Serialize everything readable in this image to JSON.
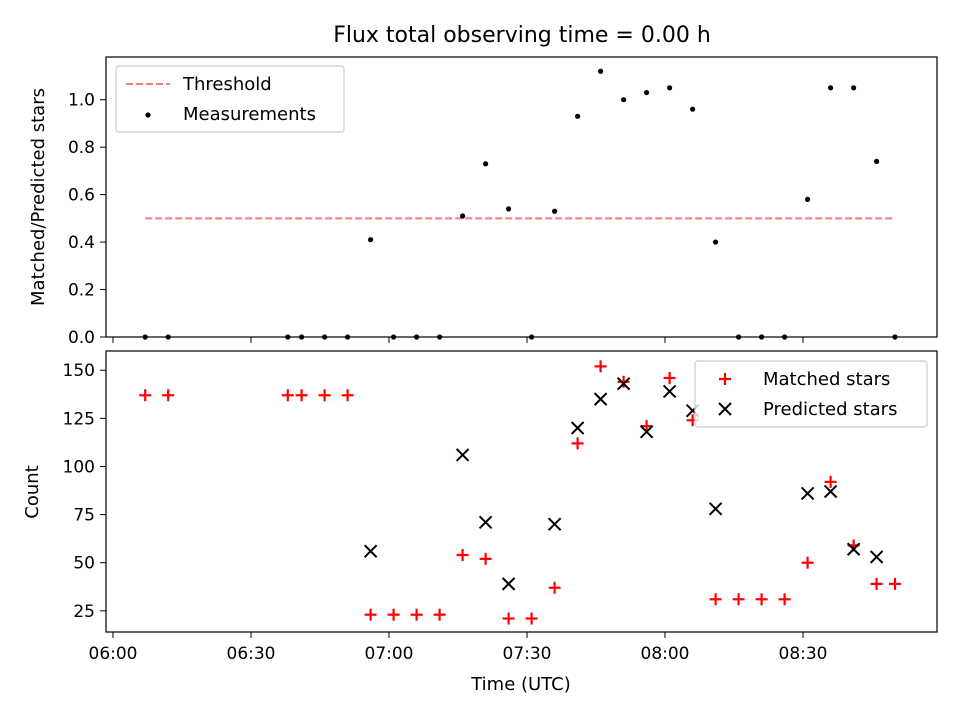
{
  "chart_data": {
    "title": "Flux total observing time = 0.00 h",
    "xlabel": "Time (UTC)",
    "x_tick_labels": [
      "06:00",
      "06:30",
      "07:00",
      "07:30",
      "08:00",
      "08:30"
    ],
    "panels": [
      {
        "type": "scatter",
        "ylabel": "Matched/Predicted stars",
        "ylim": [
          0,
          1.18
        ],
        "yticks": [
          "0.0",
          "0.2",
          "0.4",
          "0.6",
          "0.8",
          "1.0"
        ],
        "threshold": {
          "name": "Threshold",
          "value": 0.5,
          "x_start": "06:07",
          "x_end": "08:50",
          "color": "#f08080"
        },
        "series": [
          {
            "name": "Measurements",
            "color": "#000000",
            "x": [
              "06:07",
              "06:12",
              "06:38",
              "06:41",
              "06:46",
              "06:51",
              "06:56",
              "07:01",
              "07:06",
              "07:11",
              "07:16",
              "07:21",
              "07:26",
              "07:31",
              "07:36",
              "07:41",
              "07:46",
              "07:51",
              "07:56",
              "08:01",
              "08:06",
              "08:11",
              "08:16",
              "08:21",
              "08:26",
              "08:31",
              "08:36",
              "08:41",
              "08:46",
              "08:50"
            ],
            "y": [
              0,
              0,
              0,
              0,
              0,
              0,
              0.41,
              0,
              0,
              0,
              0.51,
              0.73,
              0.54,
              0,
              0.53,
              0.93,
              1.12,
              1.0,
              1.03,
              1.05,
              0.96,
              0.4,
              0,
              0,
              0,
              0.58,
              1.05,
              1.05,
              0.74,
              0
            ]
          }
        ]
      },
      {
        "type": "scatter",
        "ylabel": "Count",
        "ylim": [
          14,
          160
        ],
        "yticks": [
          "25",
          "50",
          "75",
          "100",
          "125",
          "150"
        ],
        "series": [
          {
            "name": "Matched stars",
            "color": "#ff0000",
            "marker": "plus",
            "x": [
              "06:07",
              "06:12",
              "06:38",
              "06:41",
              "06:46",
              "06:51",
              "06:56",
              "07:01",
              "07:06",
              "07:11",
              "07:16",
              "07:21",
              "07:26",
              "07:31",
              "07:36",
              "07:41",
              "07:46",
              "07:51",
              "07:56",
              "08:01",
              "08:06",
              "08:11",
              "08:16",
              "08:21",
              "08:26",
              "08:31",
              "08:36",
              "08:41",
              "08:46",
              "08:50"
            ],
            "y": [
              137,
              137,
              137,
              137,
              137,
              137,
              23,
              23,
              23,
              23,
              54,
              52,
              21,
              21,
              37,
              112,
              152,
              144,
              121,
              146,
              124,
              31,
              31,
              31,
              31,
              50,
              92,
              59,
              39,
              39
            ]
          },
          {
            "name": "Predicted stars",
            "color": "#000000",
            "marker": "x",
            "x": [
              "06:56",
              "07:16",
              "07:21",
              "07:26",
              "07:36",
              "07:41",
              "07:46",
              "07:51",
              "07:56",
              "08:01",
              "08:06",
              "08:11",
              "08:31",
              "08:36",
              "08:41",
              "08:46"
            ],
            "y": [
              56,
              106,
              71,
              39,
              70,
              120,
              135,
              143,
              118,
              139,
              129,
              78,
              86,
              87,
              57,
              53
            ]
          }
        ]
      }
    ]
  }
}
